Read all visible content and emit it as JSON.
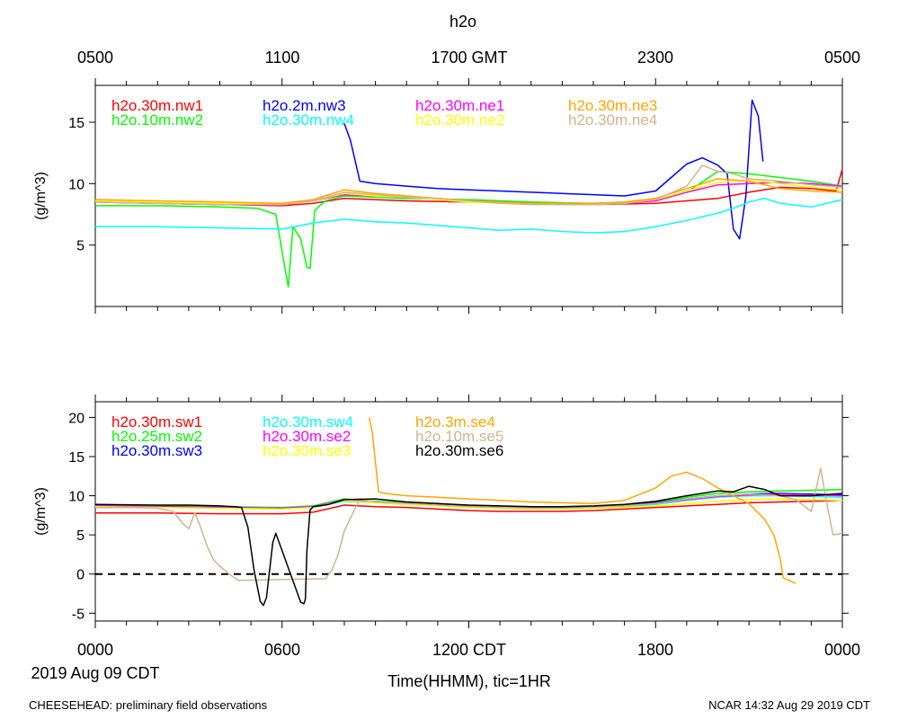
{
  "title": "h2o",
  "top_axis": {
    "ticks": [
      "0500",
      "1100",
      "1700 GMT",
      "2300",
      "0500"
    ]
  },
  "bottom_axis": {
    "ticks": [
      "0000",
      "0600",
      "1200 CDT",
      "1800",
      "0000"
    ],
    "date_label": "2019 Aug 09 CDT",
    "xlabel": "Time(HHMM), tic=1HR"
  },
  "footer": {
    "left": "CHEESEHEAD: preliminary field observations",
    "right": "NCAR 14:32 Aug 29 2019 CDT"
  },
  "chart_data": [
    {
      "type": "line",
      "title": "h2o",
      "ylabel": "(g/m^3)",
      "xlim": [
        0,
        24
      ],
      "ylim": [
        0,
        18
      ],
      "yticks": [
        5,
        10,
        15
      ],
      "x_units": "hours CDT",
      "series": [
        {
          "name": "h2o.30m.nw1",
          "color": "#ff0000",
          "x": [
            0,
            2,
            4,
            6,
            7,
            8,
            10,
            12,
            14,
            16,
            18,
            20,
            21,
            22,
            23,
            23.8,
            24
          ],
          "y": [
            8.5,
            8.4,
            8.3,
            8.2,
            8.4,
            8.8,
            8.6,
            8.5,
            8.4,
            8.3,
            8.4,
            8.8,
            9.3,
            9.7,
            9.6,
            9.4,
            11.2
          ]
        },
        {
          "name": "h2o.10m.nw2",
          "color": "#00ff00",
          "x": [
            0,
            2,
            4,
            5.2,
            5.8,
            6.1,
            6.2,
            6.35,
            6.6,
            6.8,
            6.9,
            7.05,
            7.2,
            7.4,
            8,
            10,
            12,
            14,
            16,
            18,
            19,
            20,
            21,
            22,
            23,
            24
          ],
          "y": [
            8.2,
            8.2,
            8.1,
            8.0,
            7.5,
            3.0,
            1.6,
            6.5,
            5.5,
            3.2,
            3.1,
            7.8,
            8.2,
            8.6,
            9.0,
            8.8,
            8.7,
            8.5,
            8.4,
            8.6,
            9.3,
            11.0,
            10.8,
            10.5,
            10.2,
            9.8
          ]
        },
        {
          "name": "h2o.2m.nw3",
          "color": "#0000ff",
          "x": [
            8.0,
            8.2,
            8.5,
            9,
            10,
            11,
            12,
            13,
            14,
            15,
            16,
            17,
            18,
            18.5,
            19,
            19.5,
            20,
            20.3,
            20.5,
            20.7,
            20.9,
            21.1,
            21.3,
            21.45
          ],
          "y": [
            14.9,
            13.5,
            10.2,
            10.0,
            9.8,
            9.6,
            9.5,
            9.4,
            9.3,
            9.2,
            9.1,
            9.0,
            9.4,
            10.5,
            11.6,
            12.1,
            11.5,
            10.8,
            6.3,
            5.5,
            9.0,
            16.8,
            15.5,
            11.8
          ]
        },
        {
          "name": "h2o.30m.nw4",
          "color": "#00ffff",
          "x": [
            0,
            2,
            4,
            6,
            7,
            8,
            9,
            10,
            11,
            12,
            13,
            14,
            15,
            16,
            17,
            18,
            19,
            20,
            20.5,
            21,
            21.5,
            22,
            23,
            24
          ],
          "y": [
            6.5,
            6.5,
            6.4,
            6.3,
            6.8,
            7.1,
            6.9,
            6.8,
            6.6,
            6.4,
            6.2,
            6.3,
            6.1,
            6.0,
            6.1,
            6.5,
            7.0,
            7.6,
            8.0,
            8.5,
            8.8,
            8.4,
            8.1,
            8.7
          ]
        },
        {
          "name": "h2o.30m.ne1",
          "color": "#ff00ff",
          "x": [
            0,
            2,
            4,
            6,
            7,
            8,
            9,
            10,
            11,
            12,
            13,
            14,
            15,
            16,
            17,
            18,
            19,
            20,
            21,
            22,
            23,
            24
          ],
          "y": [
            8.5,
            8.4,
            8.3,
            8.3,
            8.6,
            9.1,
            9.0,
            8.9,
            8.8,
            8.6,
            8.5,
            8.4,
            8.3,
            8.3,
            8.4,
            8.6,
            9.3,
            9.9,
            10.0,
            10.1,
            10.0,
            9.8
          ]
        },
        {
          "name": "h2o.30m.ne2",
          "color": "#ffff00",
          "x": [
            0,
            2,
            4,
            6,
            7,
            8,
            9,
            10,
            11,
            12,
            13,
            14,
            15,
            16,
            17,
            18,
            19,
            20,
            21,
            22,
            23,
            24
          ],
          "y": [
            8.6,
            8.5,
            8.4,
            8.3,
            8.6,
            9.2,
            9.0,
            8.9,
            8.7,
            8.5,
            8.4,
            8.4,
            8.3,
            8.3,
            8.4,
            8.7,
            9.4,
            10.1,
            10.3,
            10.0,
            9.7,
            9.5
          ]
        },
        {
          "name": "h2o.30m.ne3",
          "color": "#ffa500",
          "x": [
            0,
            2,
            4,
            6,
            7,
            8,
            9,
            10,
            11,
            12,
            13,
            14,
            15,
            16,
            17,
            18,
            19,
            20,
            21,
            22,
            23,
            24
          ],
          "y": [
            8.7,
            8.6,
            8.5,
            8.4,
            8.7,
            9.5,
            9.2,
            9.0,
            8.8,
            8.6,
            8.5,
            8.4,
            8.4,
            8.4,
            8.5,
            8.8,
            9.6,
            10.4,
            10.2,
            9.6,
            9.4,
            9.3
          ]
        },
        {
          "name": "h2o.30m.ne4",
          "color": "#d2b48c",
          "x": [
            0,
            2,
            4,
            6,
            7,
            8,
            9,
            10,
            11,
            12,
            13,
            14,
            15,
            16,
            17,
            18,
            19,
            19.5,
            20,
            20.5,
            21,
            22,
            23,
            24
          ],
          "y": [
            8.5,
            8.4,
            8.3,
            8.3,
            8.6,
            9.3,
            9.1,
            8.9,
            8.8,
            8.6,
            8.4,
            8.3,
            8.3,
            8.3,
            8.4,
            8.7,
            9.8,
            11.5,
            11.0,
            10.8,
            10.4,
            10.2,
            9.9,
            9.7
          ]
        }
      ]
    },
    {
      "type": "line",
      "ylabel": "(g/m^3)",
      "xlim": [
        0,
        24
      ],
      "ylim": [
        -6,
        22
      ],
      "yticks": [
        -5,
        0,
        5,
        10,
        15,
        20
      ],
      "zero_line": true,
      "x_units": "hours CDT",
      "series": [
        {
          "name": "h2o.30m.sw1",
          "color": "#ff0000",
          "x": [
            0,
            2,
            4,
            6,
            7,
            8,
            9,
            10,
            11,
            12,
            13,
            14,
            15,
            16,
            17,
            18,
            19,
            20,
            21,
            22,
            23,
            24
          ],
          "y": [
            7.8,
            7.8,
            7.7,
            7.7,
            7.9,
            8.8,
            8.6,
            8.5,
            8.3,
            8.1,
            8.0,
            8.0,
            8.0,
            8.1,
            8.3,
            8.5,
            8.7,
            8.9,
            9.1,
            9.2,
            9.3,
            9.4
          ]
        },
        {
          "name": "h2o.25m.sw2",
          "color": "#00ff00",
          "x": [
            0,
            2,
            4,
            6,
            7,
            8,
            9,
            10,
            11,
            12,
            13,
            14,
            15,
            16,
            17,
            18,
            19,
            20,
            21,
            22,
            23,
            24
          ],
          "y": [
            8.8,
            8.7,
            8.6,
            8.5,
            8.7,
            9.6,
            9.3,
            9.1,
            8.9,
            8.7,
            8.6,
            8.5,
            8.5,
            8.6,
            8.8,
            9.2,
            9.8,
            10.3,
            10.5,
            10.6,
            10.7,
            10.8
          ]
        },
        {
          "name": "h2o.30m.sw3",
          "color": "#0000ff",
          "x": [
            0,
            2,
            4,
            6,
            7,
            8,
            9,
            10,
            11,
            12,
            13,
            14,
            15,
            16,
            17,
            18,
            19,
            20,
            21,
            22,
            23,
            24
          ],
          "y": [
            8.6,
            8.6,
            8.5,
            8.4,
            8.6,
            9.4,
            9.2,
            9.0,
            8.8,
            8.6,
            8.5,
            8.4,
            8.4,
            8.5,
            8.7,
            9.1,
            9.6,
            10.0,
            10.2,
            10.3,
            10.2,
            10.1
          ]
        },
        {
          "name": "h2o.30m.sw4",
          "color": "#00ffff",
          "x": [
            0,
            2,
            4,
            6,
            7,
            8,
            9,
            10,
            11,
            12,
            13,
            14,
            15,
            16,
            17,
            18,
            19,
            20,
            21,
            22,
            23,
            24
          ],
          "y": [
            8.5,
            8.5,
            8.4,
            8.3,
            8.5,
            9.3,
            9.1,
            8.9,
            8.7,
            8.5,
            8.4,
            8.3,
            8.3,
            8.4,
            8.6,
            8.9,
            9.4,
            9.8,
            10.0,
            10.0,
            9.9,
            9.8
          ]
        },
        {
          "name": "h2o.30m.se2",
          "color": "#ff00ff",
          "x": [
            0,
            2,
            4,
            6,
            7,
            8,
            9,
            10,
            11,
            12,
            13,
            14,
            15,
            16,
            17,
            18,
            19,
            20,
            21,
            22,
            23,
            24
          ],
          "y": [
            8.7,
            8.6,
            8.5,
            8.4,
            8.6,
            9.5,
            9.2,
            9.0,
            8.8,
            8.6,
            8.5,
            8.4,
            8.4,
            8.5,
            8.7,
            9.0,
            9.5,
            9.9,
            10.1,
            10.2,
            10.1,
            10.0
          ]
        },
        {
          "name": "h2o.30m.se3",
          "color": "#ffff00",
          "x": [
            0,
            2,
            4,
            6,
            7,
            8,
            9,
            10,
            11,
            12,
            13,
            14,
            15,
            16,
            17,
            18,
            19,
            20,
            21,
            22,
            23,
            24
          ],
          "y": [
            8.6,
            8.5,
            8.4,
            8.3,
            8.5,
            9.4,
            9.1,
            8.9,
            8.7,
            8.5,
            8.4,
            8.3,
            8.3,
            8.4,
            8.5,
            8.7,
            9.0,
            9.3,
            9.5,
            9.6,
            9.5,
            9.4
          ]
        },
        {
          "name": "h2o.3m.se4",
          "color": "#ffa500",
          "x": [
            8.8,
            8.9,
            9.1,
            9.3,
            10,
            11,
            12,
            13,
            14,
            15,
            16,
            17,
            18,
            18.5,
            19,
            19.5,
            20,
            20.5,
            21,
            21.5,
            21.8,
            22.0,
            22.1,
            22.3,
            22.5
          ],
          "y": [
            20.0,
            18.0,
            10.5,
            10.3,
            10.0,
            9.8,
            9.6,
            9.4,
            9.2,
            9.1,
            9.0,
            9.4,
            11.0,
            12.5,
            13.0,
            12.2,
            11.0,
            10.0,
            9.0,
            7.0,
            5.0,
            2.0,
            -0.5,
            -0.8,
            -1.2
          ]
        },
        {
          "name": "h2o.10m.se5",
          "color": "#d2b48c",
          "x": [
            0,
            1,
            2,
            2.5,
            2.8,
            3.0,
            3.2,
            3.4,
            3.6,
            3.8,
            4.0,
            4.3,
            4.6,
            7.4,
            7.6,
            7.8,
            8.0,
            8.3,
            8.5,
            8.7,
            9,
            10,
            11,
            12,
            13,
            14,
            15,
            16,
            17,
            18,
            19,
            20,
            21,
            22,
            22.5,
            23,
            23.3,
            23.5,
            23.7,
            24
          ],
          "y": [
            8.5,
            8.5,
            8.4,
            8.0,
            6.5,
            5.8,
            7.8,
            5.8,
            3.5,
            1.8,
            1.0,
            0.0,
            -0.8,
            -0.6,
            0.5,
            2.5,
            5.5,
            8.0,
            9.6,
            9.4,
            9.2,
            9.0,
            8.8,
            8.6,
            8.5,
            8.4,
            8.4,
            8.5,
            8.7,
            9.0,
            9.6,
            10.0,
            10.2,
            10.0,
            9.5,
            8.0,
            13.5,
            9.0,
            5.0,
            5.2
          ]
        },
        {
          "name": "h2o.30m.se6",
          "color": "#000000",
          "x": [
            0,
            2,
            3,
            4,
            4.5,
            4.7,
            4.9,
            5.1,
            5.3,
            5.4,
            5.5,
            5.6,
            5.7,
            5.8,
            6.6,
            6.7,
            6.75,
            6.8,
            6.9,
            7.0,
            7.2,
            7.5,
            8,
            9,
            10,
            11,
            12,
            13,
            14,
            15,
            16,
            17,
            18,
            19,
            20,
            20.5,
            21,
            21.5,
            22,
            23,
            24
          ],
          "y": [
            8.9,
            8.8,
            8.8,
            8.7,
            8.6,
            8.5,
            6.0,
            0.5,
            -3.5,
            -4.0,
            -3.0,
            0.5,
            4.0,
            5.2,
            -3.6,
            -3.8,
            -3.2,
            3.0,
            8.2,
            8.6,
            8.7,
            8.9,
            9.5,
            9.6,
            9.2,
            9.0,
            8.8,
            8.7,
            8.6,
            8.6,
            8.7,
            8.9,
            9.3,
            10.0,
            10.6,
            10.5,
            11.2,
            10.8,
            10.0,
            10.0,
            10.3
          ]
        }
      ]
    }
  ]
}
